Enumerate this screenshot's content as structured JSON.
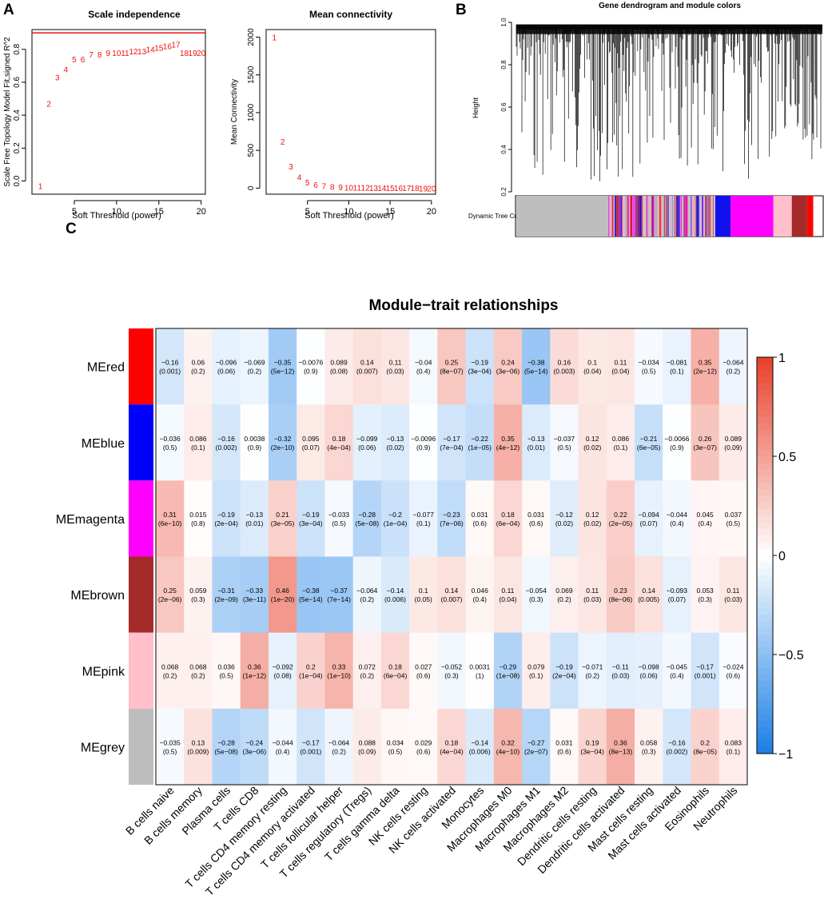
{
  "panel_labels": [
    "A",
    "B",
    "C"
  ],
  "colors": {
    "red_marks": "#ee1111",
    "neg": "#1a7fe6",
    "pos": "#e8402a",
    "zero": "#ffffff",
    "module_red": "#ff0000",
    "module_blue": "#1111ee",
    "module_magenta": "#ff00ff",
    "module_brown": "#a52a2a",
    "module_pink": "#ffc0cb",
    "module_grey": "#bebebe"
  },
  "chart_data": [
    {
      "type": "scatter",
      "title": "Scale independence",
      "xlabel": "Soft Threshold (power)",
      "ylabel": "Scale Free Topology Model Fit,signed R^2",
      "xlim": [
        0,
        20.5
      ],
      "ylim": [
        -0.08,
        0.92
      ],
      "xticks": [
        5,
        10,
        15,
        20
      ],
      "yticks": [
        0.0,
        0.2,
        0.4,
        0.6,
        0.8
      ],
      "ytick_labels": [
        "0.0",
        "0.2",
        "0.4",
        "0.6",
        "0.8"
      ],
      "hline": 0.9,
      "x": [
        1,
        2,
        3,
        4,
        5,
        6,
        7,
        8,
        9,
        10,
        11,
        12,
        13,
        14,
        15,
        16,
        17,
        18,
        19,
        20
      ],
      "y": [
        -0.03,
        0.47,
        0.63,
        0.68,
        0.74,
        0.74,
        0.77,
        0.77,
        0.78,
        0.78,
        0.78,
        0.79,
        0.79,
        0.8,
        0.81,
        0.82,
        0.83,
        0.78,
        0.78,
        0.78
      ],
      "point_labels": [
        "1",
        "2",
        "3",
        "4",
        "5",
        "6",
        "7",
        "8",
        "9",
        "10",
        "11",
        "12",
        "13",
        "14",
        "15",
        "16",
        "17",
        "18",
        "19",
        "20"
      ]
    },
    {
      "type": "scatter",
      "title": "Mean connectivity",
      "xlabel": "Soft Threshold (power)",
      "ylabel": "Mean Connectivity",
      "xlim": [
        0,
        20.5
      ],
      "ylim": [
        -80,
        2100
      ],
      "xticks": [
        5,
        10,
        15,
        20
      ],
      "yticks": [
        0,
        500,
        1000,
        1500,
        2000
      ],
      "ytick_labels": [
        "0",
        "500",
        "1000",
        "1500",
        "2000"
      ],
      "x": [
        1,
        2,
        3,
        4,
        5,
        6,
        7,
        8,
        9,
        10,
        11,
        12,
        13,
        14,
        15,
        16,
        17,
        18,
        19,
        20
      ],
      "y": [
        2000,
        620,
        290,
        150,
        80,
        45,
        30,
        20,
        15,
        10,
        9,
        8,
        7,
        6,
        5,
        4,
        3,
        3,
        2,
        2
      ],
      "point_labels": [
        "1",
        "2",
        "3",
        "4",
        "5",
        "6",
        "7",
        "8",
        "9",
        "10",
        "11",
        "12",
        "13",
        "14",
        "15",
        "16",
        "17",
        "18",
        "19",
        "20"
      ]
    },
    {
      "type": "dendrogram",
      "title": "Gene dendrogram and module colors",
      "ylabel": "Height",
      "ylim": [
        0.2,
        1.0
      ],
      "yticks": [
        0.2,
        0.4,
        0.6,
        0.8,
        1.0
      ],
      "ytick_labels": [
        "0.2",
        "0.4",
        "0.6",
        "0.8",
        "1.0"
      ],
      "color_bar_label": "Dynamic Tree Cut",
      "module_blocks": [
        {
          "module": "grey",
          "fraction": 0.3
        },
        {
          "module": "mixed",
          "fraction": 0.35
        },
        {
          "module": "blue",
          "fraction": 0.05
        },
        {
          "module": "magenta",
          "fraction": 0.14
        },
        {
          "module": "pink",
          "fraction": 0.06
        },
        {
          "module": "brown",
          "fraction": 0.05
        },
        {
          "module": "red",
          "fraction": 0.02
        }
      ]
    },
    {
      "type": "heatmap",
      "title": "Module−trait relationships",
      "rows": [
        "MEred",
        "MEblue",
        "MEmagenta",
        "MEbrown",
        "MEpink",
        "MEgrey"
      ],
      "row_colors": [
        "#ff0000",
        "#0000ff",
        "#ff00ff",
        "#a52a2a",
        "#ffc0cb",
        "#bebebe"
      ],
      "columns": [
        "B cells naive",
        "B cells memory",
        "Plasma cells",
        "T cells CD8",
        "T cells CD4 memory resting",
        "T cells CD4 memory activated",
        "T cells follicular helper",
        "T cells regulatory (Tregs)",
        "T cells gamma delta",
        "NK cells resting",
        "NK cells activated",
        "Monocytes",
        "Macrophages M0",
        "Macrophages M1",
        "Macrophages M2",
        "Dendritic cells resting",
        "Dendritic cells activated",
        "Mast cells resting",
        "Mast cells activated",
        "Eosinophils",
        "Neutrophils"
      ],
      "values": [
        [
          "−0.16",
          "0.06",
          "−0.096",
          "−0.069",
          "−0.35",
          "−0.0076",
          "0.089",
          "0.14",
          "0.11",
          "−0.04",
          "0.25",
          "−0.19",
          "0.24",
          "−0.38",
          "0.16",
          "0.1",
          "0.11",
          "−0.034",
          "−0.081",
          "0.35",
          "−0.064"
        ],
        [
          "−0.036",
          "0.086",
          "−0.16",
          "0.0038",
          "−0.32",
          "0.095",
          "0.18",
          "−0.099",
          "−0.13",
          "−0.0096",
          "−0.17",
          "−0.22",
          "0.35",
          "−0.13",
          "−0.037",
          "0.12",
          "0.086",
          "−0.21",
          "−0.0066",
          "0.26",
          "0.089"
        ],
        [
          "0.31",
          "0.015",
          "−0.19",
          "−0.13",
          "0.21",
          "−0.19",
          "−0.033",
          "−0.28",
          "−0.2",
          "−0.077",
          "−0.23",
          "0.031",
          "0.18",
          "0.031",
          "−0.12",
          "0.12",
          "0.22",
          "−0.094",
          "−0.044",
          "0.045",
          "0.037"
        ],
        [
          "0.25",
          "0.059",
          "−0.31",
          "−0.33",
          "0.46",
          "−0.38",
          "−0.37",
          "−0.064",
          "−0.14",
          "0.1",
          "0.14",
          "0.046",
          "0.11",
          "−0.054",
          "0.069",
          "0.11",
          "0.23",
          "0.14",
          "−0.093",
          "0.053",
          "0.11"
        ],
        [
          "0.068",
          "0.068",
          "0.036",
          "0.36",
          "−0.092",
          "0.2",
          "0.33",
          "0.072",
          "0.18",
          "0.027",
          "−0.052",
          "0.0031",
          "−0.29",
          "0.079",
          "−0.19",
          "−0.071",
          "−0.11",
          "−0.098",
          "−0.045",
          "−0.17",
          "−0.024"
        ],
        [
          "−0.035",
          "0.13",
          "−0.28",
          "−0.24",
          "−0.044",
          "−0.17",
          "−0.064",
          "0.088",
          "0.034",
          "0.029",
          "0.18",
          "−0.14",
          "0.32",
          "−0.27",
          "0.031",
          "0.19",
          "0.36",
          "0.058",
          "−0.16",
          "0.2",
          "0.083"
        ]
      ],
      "pvalues": [
        [
          "(0.001)",
          "(0.2)",
          "(0.06)",
          "(0.2)",
          "(5e−12)",
          "(0.9)",
          "(0.08)",
          "(0.007)",
          "(0.03)",
          "(0.4)",
          "(8e−07)",
          "(3e−04)",
          "(3e−06)",
          "(5e−14)",
          "(0.003)",
          "(0.04)",
          "(0.04)",
          "(0.5)",
          "(0.1)",
          "(2e−12)",
          "(0.2)"
        ],
        [
          "(0.5)",
          "(0.1)",
          "(0.002)",
          "(0.9)",
          "(2e−10)",
          "(0.07)",
          "(4e−04)",
          "(0.06)",
          "(0.02)",
          "(0.9)",
          "(7e−04)",
          "(1e−05)",
          "(4e−12)",
          "(0.01)",
          "(0.5)",
          "(0.02)",
          "(0.1)",
          "(6e−05)",
          "(0.9)",
          "(3e−07)",
          "(0.09)"
        ],
        [
          "(6e−10)",
          "(0.8)",
          "(2e−04)",
          "(0.01)",
          "(3e−05)",
          "(3e−04)",
          "(0.5)",
          "(5e−08)",
          "(1e−04)",
          "(0.1)",
          "(7e−06)",
          "(0.6)",
          "(6e−04)",
          "(0.6)",
          "(0.02)",
          "(0.02)",
          "(2e−05)",
          "(0.07)",
          "(0.4)",
          "(0.4)",
          "(0.5)"
        ],
        [
          "(2e−06)",
          "(0.3)",
          "(2e−09)",
          "(3e−11)",
          "(1e−20)",
          "(5e−14)",
          "(7e−14)",
          "(0.2)",
          "(0.006)",
          "(0.05)",
          "(0.007)",
          "(0.4)",
          "(0.04)",
          "(0.3)",
          "(0.2)",
          "(0.03)",
          "(8e−06)",
          "(0.005)",
          "(0.07)",
          "(0.3)",
          "(0.03)"
        ],
        [
          "(0.2)",
          "(0.2)",
          "(0.5)",
          "(1e−12)",
          "(0.08)",
          "(1e−04)",
          "(1e−10)",
          "(0.2)",
          "(6e−04)",
          "(0.6)",
          "(0.3)",
          "(1)",
          "(1e−08)",
          "(0.1)",
          "(2e−04)",
          "(0.2)",
          "(0.03)",
          "(0.06)",
          "(0.4)",
          "(0.001)",
          "(0.6)"
        ],
        [
          "(0.5)",
          "(0.009)",
          "(5e−08)",
          "(3e−06)",
          "(0.4)",
          "(0.001)",
          "(0.2)",
          "(0.09)",
          "(0.5)",
          "(0.6)",
          "(4e−04)",
          "(0.006)",
          "(4e−10)",
          "(2e−07)",
          "(0.6)",
          "(3e−04)",
          "(8e−13)",
          "(0.3)",
          "(0.002)",
          "(8e−05)",
          "(0.1)"
        ]
      ],
      "color_range": [
        -1,
        1
      ],
      "legend_ticks": [
        1,
        0.5,
        0,
        -0.5,
        -1
      ],
      "legend_labels": [
        "1",
        "0.5",
        "0",
        "−0.5",
        "−1"
      ]
    }
  ]
}
